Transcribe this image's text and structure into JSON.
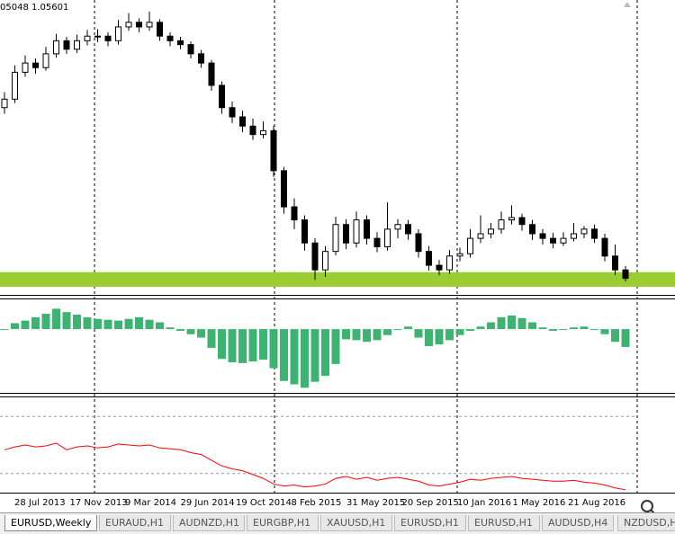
{
  "header": "05048 1.05601",
  "chart_data": [
    {
      "type": "candlestick",
      "candles": [
        [
          1.27,
          1.29,
          1.262,
          1.281
        ],
        [
          1.281,
          1.325,
          1.276,
          1.316
        ],
        [
          1.316,
          1.338,
          1.31,
          1.328
        ],
        [
          1.328,
          1.334,
          1.314,
          1.322
        ],
        [
          1.322,
          1.349,
          1.318,
          1.34
        ],
        [
          1.34,
          1.366,
          1.335,
          1.357
        ],
        [
          1.357,
          1.362,
          1.34,
          1.346
        ],
        [
          1.346,
          1.365,
          1.341,
          1.357
        ],
        [
          1.357,
          1.371,
          1.351,
          1.363
        ],
        [
          1.363,
          1.372,
          1.355,
          1.363
        ],
        [
          1.363,
          1.368,
          1.35,
          1.357
        ],
        [
          1.357,
          1.384,
          1.352,
          1.375
        ],
        [
          1.375,
          1.393,
          1.37,
          1.381
        ],
        [
          1.381,
          1.386,
          1.368,
          1.375
        ],
        [
          1.375,
          1.395,
          1.37,
          1.381
        ],
        [
          1.381,
          1.385,
          1.357,
          1.363
        ],
        [
          1.363,
          1.368,
          1.35,
          1.357
        ],
        [
          1.357,
          1.362,
          1.346,
          1.352
        ],
        [
          1.352,
          1.356,
          1.334,
          1.34
        ],
        [
          1.34,
          1.345,
          1.322,
          1.328
        ],
        [
          1.328,
          1.332,
          1.292,
          1.299
        ],
        [
          1.299,
          1.304,
          1.262,
          1.27
        ],
        [
          1.27,
          1.278,
          1.25,
          1.258
        ],
        [
          1.258,
          1.266,
          1.238,
          1.246
        ],
        [
          1.246,
          1.256,
          1.228,
          1.235
        ],
        [
          1.235,
          1.252,
          1.23,
          1.24
        ],
        [
          1.24,
          1.246,
          1.18,
          1.188
        ],
        [
          1.188,
          1.193,
          1.132,
          1.141
        ],
        [
          1.141,
          1.152,
          1.112,
          1.124
        ],
        [
          1.124,
          1.13,
          1.084,
          1.094
        ],
        [
          1.094,
          1.1,
          1.046,
          1.059
        ],
        [
          1.059,
          1.09,
          1.05,
          1.083
        ],
        [
          1.083,
          1.128,
          1.078,
          1.118
        ],
        [
          1.118,
          1.125,
          1.086,
          1.094
        ],
        [
          1.094,
          1.135,
          1.088,
          1.124
        ],
        [
          1.124,
          1.13,
          1.092,
          1.1
        ],
        [
          1.1,
          1.108,
          1.082,
          1.089
        ],
        [
          1.089,
          1.147,
          1.084,
          1.112
        ],
        [
          1.112,
          1.125,
          1.1,
          1.118
        ],
        [
          1.118,
          1.124,
          1.098,
          1.106
        ],
        [
          1.106,
          1.112,
          1.075,
          1.083
        ],
        [
          1.083,
          1.09,
          1.058,
          1.065
        ],
        [
          1.065,
          1.072,
          1.052,
          1.059
        ],
        [
          1.059,
          1.085,
          1.054,
          1.077
        ],
        [
          1.077,
          1.088,
          1.07,
          1.08
        ],
        [
          1.08,
          1.112,
          1.075,
          1.1
        ],
        [
          1.1,
          1.13,
          1.094,
          1.106
        ],
        [
          1.106,
          1.12,
          1.1,
          1.112
        ],
        [
          1.112,
          1.135,
          1.106,
          1.124
        ],
        [
          1.124,
          1.143,
          1.118,
          1.127
        ],
        [
          1.127,
          1.132,
          1.11,
          1.118
        ],
        [
          1.118,
          1.124,
          1.098,
          1.106
        ],
        [
          1.106,
          1.112,
          1.092,
          1.1
        ],
        [
          1.1,
          1.107,
          1.087,
          1.094
        ],
        [
          1.094,
          1.108,
          1.09,
          1.1
        ],
        [
          1.1,
          1.12,
          1.096,
          1.106
        ],
        [
          1.106,
          1.116,
          1.1,
          1.112
        ],
        [
          1.112,
          1.118,
          1.094,
          1.1
        ],
        [
          1.1,
          1.106,
          1.07,
          1.077
        ],
        [
          1.077,
          1.092,
          1.052,
          1.059
        ],
        [
          1.059,
          1.064,
          1.044,
          1.048
        ]
      ],
      "ylim": [
        1.03,
        1.41
      ],
      "zone": [
        1.037,
        1.056
      ],
      "zone_color": "#9acd32",
      "bull_color": "#ffffff",
      "bear_color": "#000000"
    },
    {
      "type": "bar",
      "values": [
        0,
        0.007,
        0.01,
        0.014,
        0.018,
        0.024,
        0.02,
        0.017,
        0.014,
        0.012,
        0.011,
        0.01,
        0.012,
        0.014,
        0.011,
        0.008,
        0.002,
        -0.002,
        -0.006,
        -0.01,
        -0.022,
        -0.035,
        -0.039,
        -0.04,
        -0.038,
        -0.036,
        -0.046,
        -0.061,
        -0.065,
        -0.069,
        -0.062,
        -0.055,
        -0.041,
        -0.012,
        -0.013,
        -0.015,
        -0.013,
        -0.007,
        -0.001,
        0.003,
        -0.01,
        -0.02,
        -0.018,
        -0.013,
        -0.007,
        -0.002,
        0.003,
        0.008,
        0.014,
        0.016,
        0.013,
        0.008,
        0.002,
        -0.002,
        0.0,
        0.002,
        0.003,
        0.0,
        -0.006,
        -0.015,
        -0.021
      ],
      "ylim": [
        -0.075,
        0.035
      ],
      "color": "#3cb371"
    },
    {
      "type": "line",
      "values": [
        45,
        48,
        50,
        48,
        49,
        52,
        45,
        48,
        49,
        47,
        48,
        51,
        50,
        49,
        50,
        47,
        46,
        45,
        42,
        40,
        34,
        28,
        25,
        23,
        19,
        15,
        9,
        7,
        8,
        6,
        7,
        9,
        15,
        17,
        14,
        16,
        13,
        15,
        16,
        14,
        12,
        8,
        7,
        9,
        11,
        14,
        13,
        15,
        16,
        17,
        15,
        14,
        13,
        12,
        12,
        13,
        11,
        10,
        8,
        5,
        3
      ],
      "ylim": [
        0,
        100
      ],
      "levels": [
        80,
        20
      ],
      "color": "#ff0000"
    }
  ],
  "x_labels": [
    "28 Jul 2013",
    "17 Nov 2013",
    "9 Mar 2014",
    "29 Jun 2014",
    "19 Oct 2014",
    "8 Feb 2015",
    "31 May 2015",
    "20 Sep 2015",
    "10 Jan 2016",
    "1 May 2016",
    "21 Aug 2016"
  ],
  "tabs": [
    "EURUSD,Weekly",
    "EURAUD,H1",
    "AUDNZD,H1",
    "EURGBP,H1",
    "XAUUSD,H1",
    "EURUSD,H1",
    "EURUSD,H1",
    "AUDUSD,H4",
    "NZDUSD,H1"
  ]
}
